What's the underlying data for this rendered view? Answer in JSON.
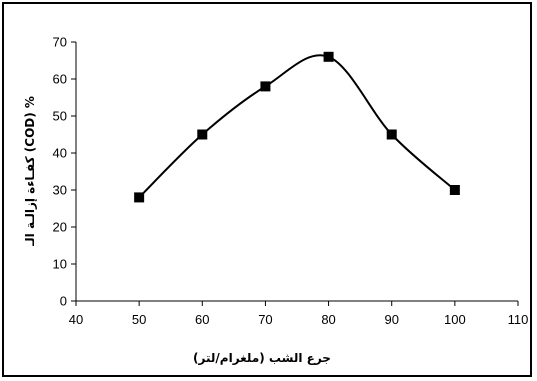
{
  "chart_data": {
    "type": "line",
    "title": "",
    "xlabel": "جرع الشب (ملغرام/لتر)",
    "ylabel": "% (COD) كفـاءة إزالـة الـ",
    "xlim": [
      40,
      110
    ],
    "ylim": [
      0,
      70
    ],
    "xticks": [
      40,
      50,
      60,
      70,
      80,
      90,
      100,
      110
    ],
    "yticks": [
      0,
      10,
      20,
      30,
      40,
      50,
      60,
      70
    ],
    "grid": false,
    "legend": "none",
    "smooth": true,
    "marker": "square",
    "colors": {
      "line": "#000000",
      "marker": "#000000",
      "axis": "#000000"
    },
    "series": [
      {
        "x": [
          50,
          60,
          70,
          80,
          90,
          100
        ],
        "y": [
          28,
          45,
          58,
          66,
          45,
          30
        ]
      }
    ]
  }
}
